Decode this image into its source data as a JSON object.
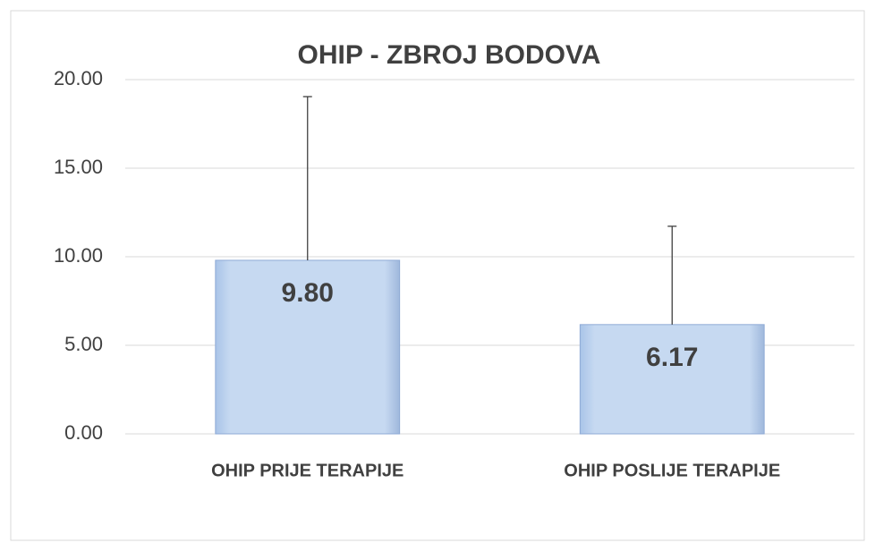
{
  "chart_data": {
    "type": "bar",
    "title": "OHIP - ZBROJ BODOVA",
    "categories": [
      "OHIP PRIJE TERAPIJE",
      "OHIP POSLIJE TERAPIJE"
    ],
    "values": [
      9.8,
      6.17
    ],
    "value_labels": [
      "9.80",
      "6.17"
    ],
    "errors": [
      9.24,
      5.55
    ],
    "color": "#c6d9f1",
    "ylim": [
      0,
      20
    ],
    "yticks": [
      {
        "value": 0,
        "label": "0.00"
      },
      {
        "value": 5,
        "label": "5.00"
      },
      {
        "value": 10,
        "label": "10.00"
      },
      {
        "value": 15,
        "label": "15.00"
      },
      {
        "value": 20,
        "label": "20.00"
      }
    ],
    "grid": true
  }
}
